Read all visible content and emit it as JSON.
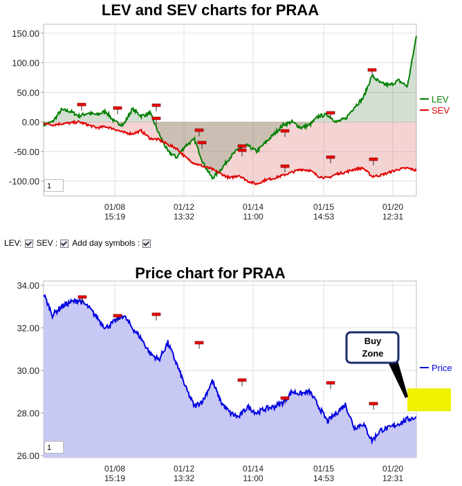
{
  "chart_data": [
    {
      "type": "line",
      "title": "LEV and SEV charts for PRAA",
      "x_tick_labels": [
        [
          "01/08",
          "15:19"
        ],
        [
          "01/12",
          "13:32"
        ],
        [
          "01/14",
          "11:00"
        ],
        [
          "01/15",
          "14:53"
        ],
        [
          "01/20",
          "12:31"
        ]
      ],
      "ylim": [
        -125,
        165
      ],
      "y_ticks": [
        "150.00",
        "100.00",
        "50.00",
        "0.00",
        "-50.00",
        "-100.00"
      ],
      "legend": "right",
      "grid": true,
      "series": [
        {
          "name": "LEV",
          "color": "#008000",
          "values": [
            -5,
            0,
            20,
            18,
            10,
            15,
            12,
            18,
            0,
            -5,
            22,
            10,
            15,
            -20,
            -50,
            -60,
            -40,
            -30,
            -70,
            -95,
            -80,
            -60,
            -45,
            -40,
            -50,
            -35,
            -20,
            -5,
            0,
            -10,
            -5,
            10,
            12,
            0,
            5,
            25,
            40,
            78,
            65,
            62,
            70,
            60,
            145
          ]
        },
        {
          "name": "SEV",
          "color": "#e00000",
          "values": [
            -2,
            -5,
            -3,
            -2,
            0,
            -5,
            -10,
            -8,
            -12,
            -18,
            -20,
            -15,
            -28,
            -30,
            -38,
            -45,
            -60,
            -70,
            -75,
            -80,
            -88,
            -95,
            -90,
            -100,
            -105,
            -98,
            -95,
            -90,
            -85,
            -80,
            -82,
            -92,
            -95,
            -88,
            -85,
            -80,
            -78,
            -92,
            -90,
            -85,
            -80,
            -78,
            -82
          ]
        }
      ],
      "page_box": "1"
    },
    {
      "type": "area",
      "title": "Price chart for PRAA",
      "x_tick_labels": [
        [
          "01/08",
          "15:19"
        ],
        [
          "01/12",
          "13:32"
        ],
        [
          "01/14",
          "11:00"
        ],
        [
          "01/15",
          "14:53"
        ],
        [
          "01/20",
          "12:31"
        ]
      ],
      "ylim": [
        25.9,
        34.2
      ],
      "y_ticks": [
        "34.00",
        "32.00",
        "30.00",
        "28.00",
        "26.00"
      ],
      "legend": "right",
      "grid": true,
      "series": [
        {
          "name": "Price",
          "color": "#0000e0",
          "values": [
            33.6,
            32.6,
            33.0,
            33.2,
            33.3,
            33.0,
            32.5,
            32.0,
            32.3,
            32.6,
            32.0,
            31.5,
            30.8,
            30.5,
            31.3,
            30.3,
            29.2,
            28.3,
            28.6,
            29.5,
            28.5,
            28.0,
            27.8,
            28.3,
            28.0,
            28.2,
            28.3,
            28.5,
            29.0,
            28.9,
            29.0,
            28.3,
            27.6,
            28.0,
            28.4,
            27.3,
            27.5,
            26.7,
            27.2,
            27.3,
            27.5,
            27.7,
            27.8
          ]
        }
      ],
      "annotation": {
        "label_line1": "Buy",
        "label_line2": "Zone",
        "zone_color": "#f0f000"
      },
      "page_box": "1"
    }
  ],
  "controls": {
    "lev_label": "LEV:",
    "sev_label": "SEV :",
    "daysym_label": "Add day symbols :"
  }
}
